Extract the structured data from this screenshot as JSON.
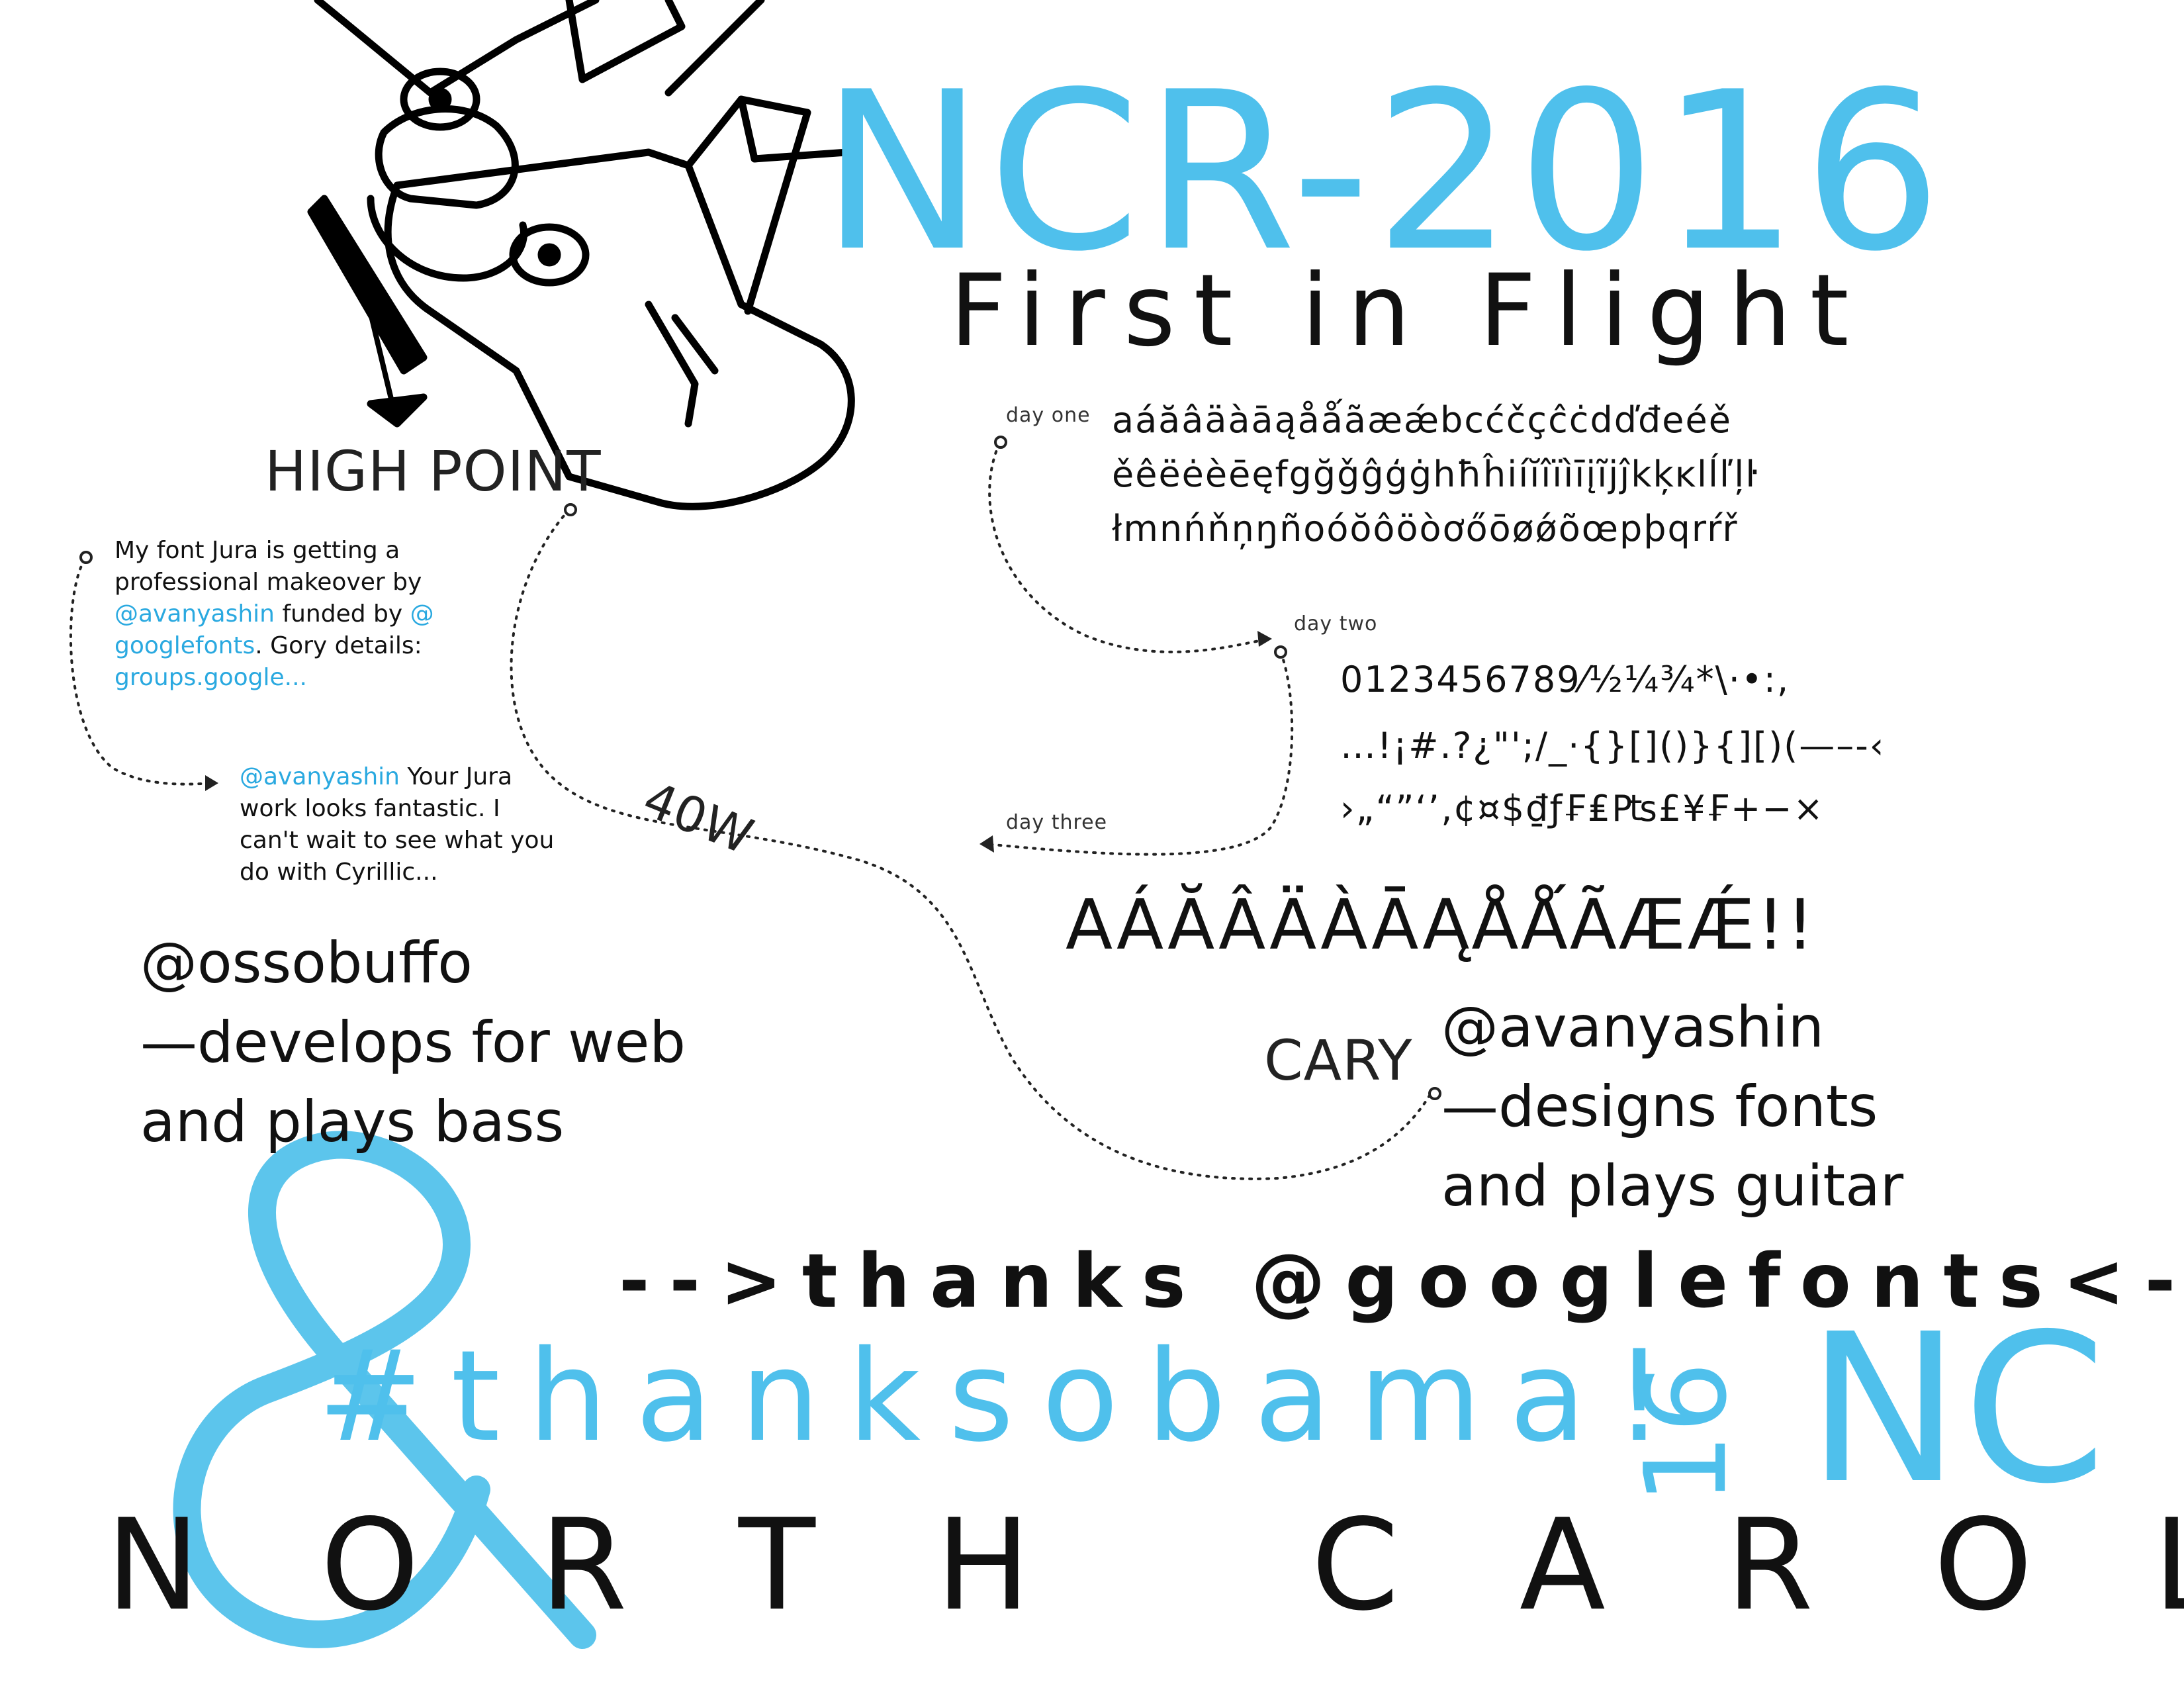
{
  "header": {
    "title": "NCR-2016",
    "subtitle": "First in Flight"
  },
  "specimen": {
    "day_one_label": "day one",
    "day_one_rows": [
      "aáăâäàāąåǻãæǽbcćčçĉċdďđeéě",
      "ěêëėèēęfgğǧĝģġhħĥiíĭîïìīįĩjĵkķĸlĺľļŀ",
      "łmnńňņŋñoóŏôöòơőōøǿõœpþqrŕř"
    ],
    "day_two_label": "day two",
    "day_two_rows": [
      "0123456789⁄½¼¾*\\·•:,",
      "…!¡#.?¿\"';/_·{}[]()}{][)(—–-‹",
      "›„“”‘’‚¢¤$₫ƒ₣₤₧£¥₣+−×"
    ],
    "day_three_label": "day three",
    "day_three_row": "AÁĂÂÄÀĀĄÅǺÃÆǼ!!"
  },
  "places": {
    "high_point": "HIGH POINT",
    "forty_w": "40W",
    "cary": "CARY"
  },
  "tweets": {
    "first": {
      "prefix": "My font Jura is getting a professional makeover by ",
      "handle1": "@avanyashin",
      "middle": " funded by ",
      "handle2": "@ googlefonts",
      "suffix": ". Gory details: ",
      "link": "groups.google..."
    },
    "second": {
      "handle": "@avanyashin",
      "text": " Your Jura work looks fantastic. I can't wait to see what you do with Cyrillic..."
    }
  },
  "bios": {
    "left_handle": "@ossobuffo",
    "left_line1": "—develops for web",
    "left_line2": "and plays bass",
    "right_handle": "@avanyashin",
    "right_line1": "—designs fonts",
    "right_line2": "and plays guitar"
  },
  "footer": {
    "ampersand": "&",
    "thanks": "-->thanks @googlefonts<--",
    "hashtag": "#thanksobama!",
    "badge_number": "16",
    "badge_state": "NC",
    "state_name": "NORTH CAROLINA"
  },
  "colors": {
    "accent_blue": "#4fc0ec",
    "link_blue": "#2aa9e0",
    "ink": "#111111"
  },
  "icons": {
    "illustration": "biplane-illustration",
    "path_markers": "dotted-flight-path"
  }
}
